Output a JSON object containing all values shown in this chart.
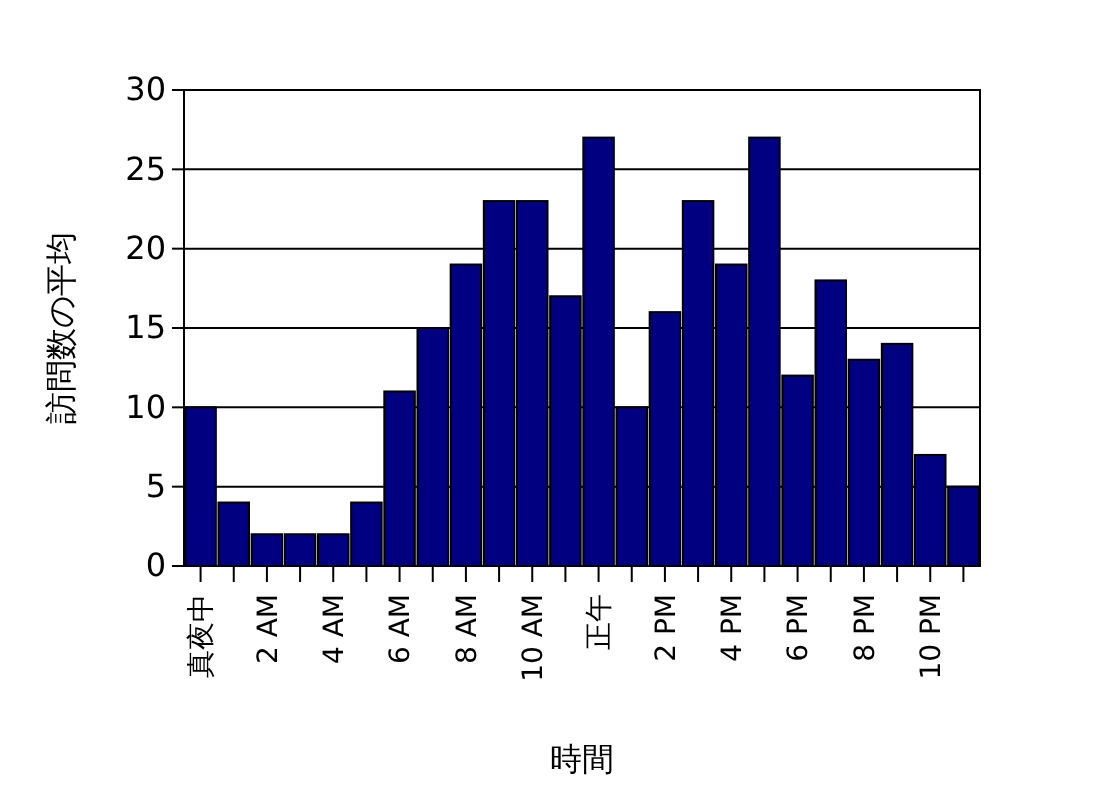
{
  "chart_data": {
    "type": "bar",
    "xlabel": "時間",
    "ylabel": "訪問数の平均",
    "categories": [
      "真夜中",
      null,
      "2 AM",
      null,
      "4 AM",
      null,
      "6 AM",
      null,
      "8 AM",
      null,
      "10 AM",
      null,
      "正午",
      null,
      "2 PM",
      null,
      "4 PM",
      null,
      "6 PM",
      null,
      "8 PM",
      null,
      "10 PM",
      null
    ],
    "values": [
      10,
      4,
      2,
      2,
      2,
      4,
      11,
      15,
      19,
      23,
      23,
      17,
      27,
      10,
      16,
      23,
      19,
      27,
      12,
      18,
      13,
      14,
      7,
      5
    ],
    "color": "#000080",
    "ylim": [
      0,
      30
    ],
    "yticks": [
      0,
      5,
      10,
      15,
      20,
      25,
      30
    ],
    "grid": "y"
  }
}
